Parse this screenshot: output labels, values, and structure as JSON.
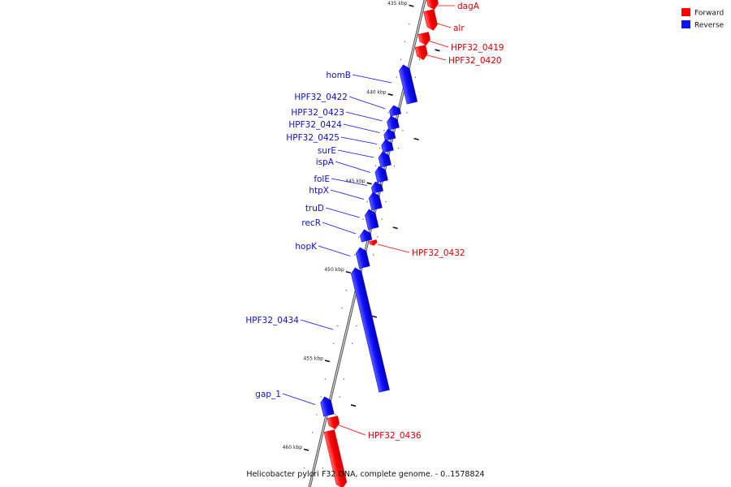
{
  "diagram": {
    "caption": "Helicobacter pylori F32 DNA, complete genome. - 0..1578824",
    "colors": {
      "forward": "#ff0000",
      "reverse": "#1010ff"
    },
    "legend": [
      {
        "key": "forward",
        "label": "Forward",
        "color": "#ff0000"
      },
      {
        "key": "reverse",
        "label": "Reverse",
        "color": "#1010ff"
      }
    ],
    "scale_ticks": [
      {
        "label": "435 kbp",
        "kbp": 435
      },
      {
        "label": "440 kbp",
        "kbp": 440
      },
      {
        "label": "445 kbp",
        "kbp": 445
      },
      {
        "label": "450 kbp",
        "kbp": 450
      },
      {
        "label": "455 kbp",
        "kbp": 455
      },
      {
        "label": "460 kbp",
        "kbp": 460
      }
    ],
    "genes": [
      {
        "name": "dagA",
        "strand": "forward"
      },
      {
        "name": "alr",
        "strand": "forward"
      },
      {
        "name": "HPF32_0419",
        "strand": "forward"
      },
      {
        "name": "HPF32_0420",
        "strand": "forward"
      },
      {
        "name": "homB",
        "strand": "reverse"
      },
      {
        "name": "HPF32_0422",
        "strand": "reverse"
      },
      {
        "name": "HPF32_0423",
        "strand": "reverse"
      },
      {
        "name": "HPF32_0424",
        "strand": "reverse"
      },
      {
        "name": "HPF32_0425",
        "strand": "reverse"
      },
      {
        "name": "surE",
        "strand": "reverse"
      },
      {
        "name": "ispA",
        "strand": "reverse"
      },
      {
        "name": "folE",
        "strand": "reverse"
      },
      {
        "name": "htpX",
        "strand": "reverse"
      },
      {
        "name": "truD",
        "strand": "reverse"
      },
      {
        "name": "recR",
        "strand": "reverse"
      },
      {
        "name": "hopK",
        "strand": "reverse"
      },
      {
        "name": "HPF32_0432",
        "strand": "forward"
      },
      {
        "name": "HPF32_0434",
        "strand": "reverse"
      },
      {
        "name": "gap_1",
        "strand": "reverse"
      },
      {
        "name": "HPF32_0436",
        "strand": "forward"
      }
    ]
  }
}
